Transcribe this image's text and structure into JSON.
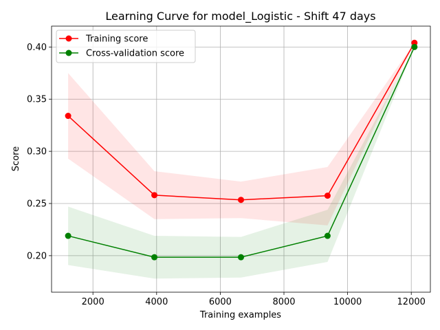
{
  "chart_data": {
    "type": "line",
    "title": "Learning Curve for model_Logistic - Shift 47 days",
    "xlabel": "Training examples",
    "ylabel": "Score",
    "xlim": [
      700,
      12600
    ],
    "ylim": [
      0.165,
      0.42
    ],
    "xticks": [
      2000,
      4000,
      6000,
      8000,
      10000,
      12000
    ],
    "yticks": [
      0.2,
      0.25,
      0.3,
      0.35,
      0.4
    ],
    "xtick_labels": [
      "2000",
      "4000",
      "6000",
      "8000",
      "10000",
      "12000"
    ],
    "ytick_labels": [
      "0.20",
      "0.25",
      "0.30",
      "0.35",
      "0.40"
    ],
    "grid": true,
    "legend_position": "upper-left",
    "x": [
      1220,
      3930,
      6650,
      9370,
      12100
    ],
    "series": [
      {
        "name": "Training score",
        "color": "#ff0000",
        "values": [
          0.334,
          0.258,
          0.2535,
          0.2575,
          0.404
        ],
        "lower": [
          0.293,
          0.235,
          0.236,
          0.229,
          0.404
        ],
        "upper": [
          0.375,
          0.281,
          0.271,
          0.285,
          0.404
        ]
      },
      {
        "name": "Cross-validation score",
        "color": "#008000",
        "values": [
          0.219,
          0.1985,
          0.1985,
          0.219,
          0.4
        ],
        "lower": [
          0.191,
          0.178,
          0.179,
          0.194,
          0.4
        ],
        "upper": [
          0.247,
          0.219,
          0.218,
          0.244,
          0.4
        ]
      }
    ]
  }
}
